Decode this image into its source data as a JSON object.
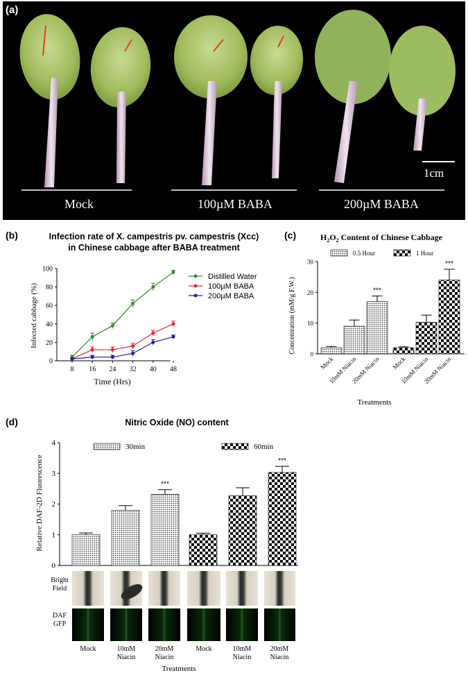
{
  "panel_a": {
    "label": "(a)",
    "groups": [
      "Mock",
      "100µM BABA",
      "200µM BABA"
    ],
    "scale_bar": "1cm"
  },
  "chart_data": [
    {
      "id": "b",
      "panel_label": "(b)",
      "type": "line",
      "title_line1": "Infection rate of X. campestris pv. campestris (Xcc)",
      "title_line2": "in Chinese cabbage after BABA treatment",
      "xlabel": "Time (Hrs)",
      "ylabel": "Infected cabbage (%)",
      "x": [
        8,
        16,
        24,
        32,
        40,
        48
      ],
      "xlim": [
        8,
        48
      ],
      "ylim": [
        0,
        100
      ],
      "yticks": [
        0,
        20,
        40,
        60,
        80,
        100
      ],
      "legend_position": "right",
      "series": [
        {
          "name": "Distilled Water",
          "color": "#2e8b2e",
          "values": [
            4,
            26,
            38,
            62,
            80,
            96
          ],
          "err": [
            2,
            4,
            3,
            4,
            4,
            2
          ]
        },
        {
          "name": "100µM BABA",
          "color": "#e8202a",
          "values": [
            2,
            12,
            12,
            16,
            30,
            40
          ],
          "err": [
            1,
            3,
            3,
            3,
            3,
            3
          ]
        },
        {
          "name": "200µM BABA",
          "color": "#1f1fa8",
          "values": [
            2,
            4,
            4,
            8,
            20,
            26
          ],
          "err": [
            1,
            2,
            2,
            3,
            3,
            2
          ]
        }
      ]
    },
    {
      "id": "c",
      "panel_label": "(c)",
      "type": "bar",
      "title": "H2O2 Content of Chinese Cabbage",
      "xlabel": "Treatments",
      "ylabel": "Concentration (mM/g F.W.)",
      "ylim": [
        0,
        30
      ],
      "yticks": [
        0,
        10,
        20,
        30
      ],
      "categories": [
        "Mock",
        "10mM Niacin",
        "20mM Niacin"
      ],
      "series": [
        {
          "name": "0.5 Hour",
          "values": [
            2,
            9,
            17
          ],
          "err": [
            0.4,
            2,
            1.8
          ]
        },
        {
          "name": "1 Hour",
          "values": [
            2,
            10.3,
            24
          ],
          "err": [
            0.3,
            2.3,
            3.5
          ]
        }
      ],
      "significance": [
        "",
        "",
        "***"
      ]
    },
    {
      "id": "d",
      "panel_label": "(d)",
      "type": "bar",
      "title": "Nitric Oxide (NO) content",
      "xlabel": "Treatments",
      "ylabel": "Relative DAF-2D Fluorescence",
      "ylim": [
        0,
        4
      ],
      "yticks": [
        0,
        1,
        2,
        3,
        4
      ],
      "categories": [
        "Mock",
        "10mM Niacin",
        "20mM Niacin"
      ],
      "series": [
        {
          "name": "30min",
          "values": [
            1,
            1.8,
            2.32
          ],
          "err": [
            0.06,
            0.15,
            0.15
          ]
        },
        {
          "name": "60min",
          "values": [
            1,
            2.27,
            3.03
          ],
          "err": [
            0.05,
            0.26,
            0.2
          ]
        }
      ],
      "significance": [
        "",
        "",
        "***"
      ]
    }
  ],
  "panel_d_images": {
    "row_labels": [
      "Bright Field",
      "DAF GFP"
    ],
    "column_labels": [
      "Mock",
      "10mM Niacin",
      "20mM Niacin"
    ]
  },
  "colors": {
    "water": "#2e8b2e",
    "baba100": "#e8202a",
    "baba200": "#1f1fa8"
  }
}
